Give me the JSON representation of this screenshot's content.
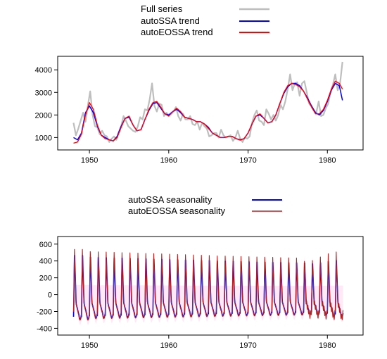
{
  "chart_data": [
    {
      "type": "line",
      "title": "",
      "xlabel": "",
      "ylabel": "",
      "xlim": [
        1946,
        1984.5
      ],
      "ylim": [
        450,
        4600
      ],
      "x_ticks": [
        1950,
        1960,
        1970,
        1980
      ],
      "y_ticks": [
        1000,
        2000,
        3000,
        4000
      ],
      "grid": false,
      "legend": {
        "placement": "top-center"
      },
      "colors": {
        "full": "#bebebe",
        "ssa": "#0000ff",
        "eossa": "#ff0000"
      },
      "series": [
        {
          "name": "Full series",
          "x": [
            1948.0,
            1948.3,
            1948.6,
            1948.9,
            1949.2,
            1949.5,
            1949.8,
            1950.1,
            1950.4,
            1950.7,
            1951.0,
            1951.3,
            1951.6,
            1951.9,
            1952.2,
            1952.5,
            1952.8,
            1953.1,
            1953.4,
            1953.7,
            1954.0,
            1954.3,
            1954.6,
            1954.9,
            1955.2,
            1955.5,
            1955.8,
            1956.1,
            1956.4,
            1956.7,
            1957.0,
            1957.3,
            1957.6,
            1957.9,
            1958.2,
            1958.5,
            1958.8,
            1959.1,
            1959.4,
            1959.7,
            1960.0,
            1960.3,
            1960.6,
            1960.9,
            1961.2,
            1961.5,
            1961.8,
            1962.1,
            1962.4,
            1962.7,
            1963.0,
            1963.3,
            1963.6,
            1963.9,
            1964.2,
            1964.5,
            1964.8,
            1965.1,
            1965.4,
            1965.7,
            1966.0,
            1966.3,
            1966.6,
            1966.9,
            1967.2,
            1967.5,
            1967.8,
            1968.1,
            1968.4,
            1968.7,
            1969.0,
            1969.3,
            1969.6,
            1969.9,
            1970.2,
            1970.5,
            1970.8,
            1971.1,
            1971.4,
            1971.7,
            1972.0,
            1972.3,
            1972.6,
            1972.9,
            1973.2,
            1973.5,
            1973.8,
            1974.1,
            1974.4,
            1974.7,
            1975.0,
            1975.3,
            1975.6,
            1975.9,
            1976.2,
            1976.5,
            1976.8,
            1977.1,
            1977.4,
            1977.7,
            1978.0,
            1978.3,
            1978.6,
            1978.9,
            1979.2,
            1979.5,
            1979.8,
            1980.1,
            1980.4,
            1980.7,
            1981.0,
            1981.3,
            1981.6,
            1981.9
          ],
          "y": [
            1650,
            1100,
            1400,
            1750,
            2100,
            1700,
            2400,
            3050,
            2000,
            1500,
            1450,
            1150,
            1300,
            1100,
            1050,
            800,
            950,
            1050,
            900,
            1250,
            1500,
            1950,
            1750,
            1500,
            1400,
            1300,
            1250,
            1500,
            1900,
            1800,
            2250,
            2200,
            2700,
            3400,
            2400,
            2150,
            2500,
            2450,
            1950,
            2100,
            2000,
            2050,
            2150,
            2350,
            1950,
            1750,
            2050,
            1800,
            1800,
            1950,
            1600,
            1550,
            1700,
            1350,
            1650,
            1500,
            1400,
            1050,
            1100,
            1200,
            1200,
            1000,
            1350,
            1100,
            1000,
            1050,
            1100,
            850,
            1000,
            1300,
            950,
            800,
            1000,
            950,
            1050,
            1650,
            2000,
            2200,
            1750,
            1700,
            1550,
            2250,
            2050,
            1800,
            2000,
            1750,
            2000,
            2450,
            2250,
            2600,
            3150,
            3800,
            3100,
            3400,
            3450,
            2850,
            3400,
            3500,
            3000,
            2500,
            2400,
            2200,
            2100,
            2600,
            1950,
            2000,
            2300,
            2500,
            3000,
            3350,
            3800,
            3100,
            3400,
            4350
          ]
        },
        {
          "name": "autoSSA trend",
          "x": [
            1948.0,
            1948.5,
            1949.0,
            1949.5,
            1950.0,
            1950.5,
            1951.0,
            1951.5,
            1952.0,
            1952.5,
            1953.0,
            1953.5,
            1954.0,
            1954.5,
            1955.0,
            1955.5,
            1956.0,
            1956.5,
            1957.0,
            1957.5,
            1958.0,
            1958.5,
            1959.0,
            1959.5,
            1960.0,
            1960.5,
            1961.0,
            1961.5,
            1962.0,
            1962.5,
            1963.0,
            1963.5,
            1964.0,
            1964.5,
            1965.0,
            1965.5,
            1966.0,
            1966.5,
            1967.0,
            1967.5,
            1968.0,
            1968.5,
            1969.0,
            1969.5,
            1970.0,
            1970.5,
            1971.0,
            1971.5,
            1972.0,
            1972.5,
            1973.0,
            1973.5,
            1974.0,
            1974.5,
            1975.0,
            1975.5,
            1976.0,
            1976.5,
            1977.0,
            1977.5,
            1978.0,
            1978.5,
            1979.0,
            1979.5,
            1980.0,
            1980.5,
            1981.0,
            1981.5,
            1981.9
          ],
          "y": [
            1000,
            900,
            1200,
            2100,
            2400,
            2100,
            1500,
            1100,
            1000,
            900,
            850,
            1050,
            1500,
            1850,
            1900,
            1550,
            1300,
            1350,
            1800,
            2200,
            2500,
            2550,
            2300,
            2050,
            2000,
            2150,
            2250,
            2100,
            1900,
            1850,
            1800,
            1700,
            1700,
            1600,
            1450,
            1200,
            1100,
            1000,
            1000,
            1050,
            1050,
            950,
            900,
            950,
            1200,
            1600,
            1950,
            2000,
            1850,
            1650,
            1700,
            2000,
            2500,
            2950,
            3250,
            3400,
            3400,
            3300,
            3050,
            2750,
            2400,
            2100,
            2000,
            2200,
            2600,
            3100,
            3400,
            3300,
            2650
          ]
        },
        {
          "name": "autoEOSSA trend",
          "x": [
            1948.0,
            1948.5,
            1949.0,
            1949.5,
            1950.0,
            1950.5,
            1951.0,
            1951.5,
            1952.0,
            1952.5,
            1953.0,
            1953.5,
            1954.0,
            1954.5,
            1955.0,
            1955.5,
            1956.0,
            1956.5,
            1957.0,
            1957.5,
            1958.0,
            1958.5,
            1959.0,
            1959.5,
            1960.0,
            1960.5,
            1961.0,
            1961.5,
            1962.0,
            1962.5,
            1963.0,
            1963.5,
            1964.0,
            1964.5,
            1965.0,
            1965.5,
            1966.0,
            1966.5,
            1967.0,
            1967.5,
            1968.0,
            1968.5,
            1969.0,
            1969.5,
            1970.0,
            1970.5,
            1971.0,
            1971.5,
            1972.0,
            1972.5,
            1973.0,
            1973.5,
            1974.0,
            1974.5,
            1975.0,
            1975.5,
            1976.0,
            1976.5,
            1977.0,
            1977.5,
            1978.0,
            1978.5,
            1979.0,
            1979.5,
            1980.0,
            1980.5,
            1981.0,
            1981.5,
            1981.9
          ],
          "y": [
            750,
            800,
            1150,
            2000,
            2550,
            2250,
            1550,
            1100,
            950,
            900,
            850,
            1000,
            1450,
            1850,
            1950,
            1550,
            1300,
            1350,
            1800,
            2250,
            2550,
            2600,
            2350,
            2050,
            1950,
            2150,
            2300,
            2150,
            1900,
            1850,
            1800,
            1700,
            1700,
            1600,
            1400,
            1200,
            1100,
            1000,
            1000,
            1050,
            1050,
            950,
            880,
            950,
            1200,
            1600,
            1950,
            2050,
            1850,
            1650,
            1700,
            2000,
            2500,
            3000,
            3300,
            3400,
            3350,
            3250,
            3050,
            2700,
            2350,
            2050,
            2050,
            2250,
            2650,
            3150,
            3500,
            3400,
            3150
          ]
        }
      ]
    },
    {
      "type": "line",
      "title": "",
      "xlabel": "",
      "ylabel": "",
      "xlim": [
        1946,
        1984.5
      ],
      "ylim": [
        -480,
        690
      ],
      "x_ticks": [
        1950,
        1960,
        1970,
        1980
      ],
      "y_ticks": [
        -400,
        -200,
        0,
        200,
        400,
        600
      ],
      "grid": false,
      "legend": {
        "placement": "top-center"
      },
      "colors": {
        "ssa": "#0000ff",
        "eossa": "#b22222",
        "band": "#ffe0f2"
      },
      "start_year": 1948,
      "end_year": 1982,
      "series": [
        {
          "name": "autoSSA seasonality"
        },
        {
          "name": "autoEOSSA seasonality"
        }
      ]
    }
  ]
}
